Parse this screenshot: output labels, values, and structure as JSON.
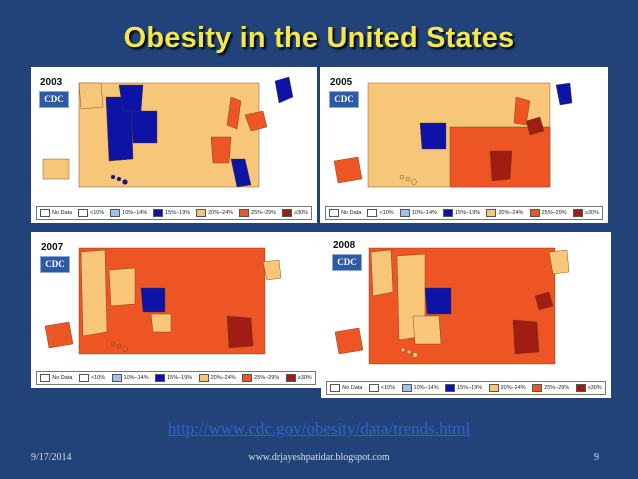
{
  "slide": {
    "title": "Obesity in the United States",
    "link": "http://www.cdc.gov/obesity/data/trends.html",
    "date": "9/17/2014",
    "site": "www.drjayeshpatidar.blogspot.com",
    "page": "9"
  },
  "colors": {
    "slide_background": "#21437a",
    "title": "#f5e64a",
    "link": "#2f63c9"
  },
  "legend": [
    {
      "label": "No Data",
      "color": "#ffffff"
    },
    {
      "label": "<10%",
      "color": "#ffffff"
    },
    {
      "label": "10%–14%",
      "color": "#9ec3ea"
    },
    {
      "label": "15%–19%",
      "color": "#0d13a4"
    },
    {
      "label": "20%–24%",
      "color": "#f8c679"
    },
    {
      "label": "25%–29%",
      "color": "#ee5524"
    },
    {
      "label": "≥30%",
      "color": "#a01d14"
    }
  ],
  "maps": [
    {
      "year": "2003",
      "logo": "CDC"
    },
    {
      "year": "2005",
      "logo": "CDC"
    },
    {
      "year": "2007",
      "logo": "CDC"
    },
    {
      "year": "2008",
      "logo": "CDC"
    }
  ]
}
